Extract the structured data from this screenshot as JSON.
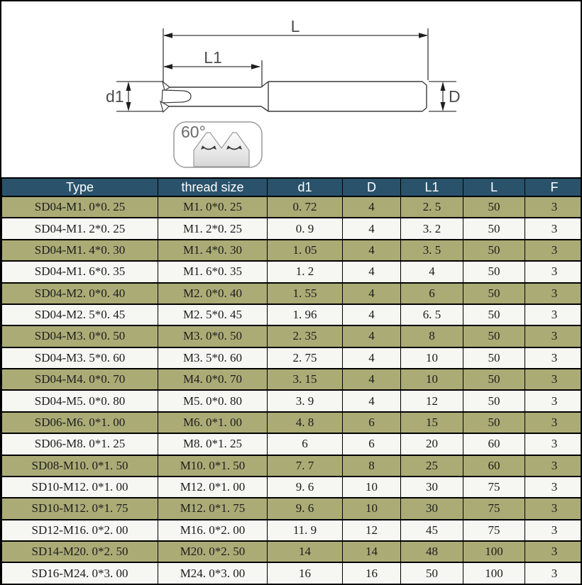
{
  "diagram": {
    "dim_L": "L",
    "dim_L1": "L1",
    "dim_d1": "d1",
    "dim_D": "D",
    "thread_angle": "60°"
  },
  "table": {
    "headers": [
      "Type",
      "thread size",
      "d1",
      "D",
      "L1",
      "L",
      "F"
    ],
    "rows": [
      [
        "SD04-M1. 0*0. 25",
        "M1. 0*0. 25",
        "0. 72",
        "4",
        "2. 5",
        "50",
        "3"
      ],
      [
        "SD04-M1. 2*0. 25",
        "M1. 2*0. 25",
        "0. 9",
        "4",
        "3. 2",
        "50",
        "3"
      ],
      [
        "SD04-M1. 4*0. 30",
        "M1. 4*0. 30",
        "1. 05",
        "4",
        "3. 5",
        "50",
        "3"
      ],
      [
        "SD04-M1. 6*0. 35",
        "M1. 6*0. 35",
        "1. 2",
        "4",
        "4",
        "50",
        "3"
      ],
      [
        "SD04-M2. 0*0. 40",
        "M2. 0*0. 40",
        "1. 55",
        "4",
        "6",
        "50",
        "3"
      ],
      [
        "SD04-M2. 5*0. 45",
        "M2. 5*0. 45",
        "1. 96",
        "4",
        "6. 5",
        "50",
        "3"
      ],
      [
        "SD04-M3. 0*0. 50",
        "M3. 0*0. 50",
        "2. 35",
        "4",
        "8",
        "50",
        "3"
      ],
      [
        "SD04-M3. 5*0. 60",
        "M3. 5*0. 60",
        "2. 75",
        "4",
        "10",
        "50",
        "3"
      ],
      [
        "SD04-M4. 0*0. 70",
        "M4. 0*0. 70",
        "3. 15",
        "4",
        "10",
        "50",
        "3"
      ],
      [
        "SD04-M5. 0*0. 80",
        "M5. 0*0. 80",
        "3. 9",
        "4",
        "12",
        "50",
        "3"
      ],
      [
        "SD06-M6. 0*1. 00",
        "M6. 0*1. 00",
        "4. 8",
        "6",
        "15",
        "50",
        "3"
      ],
      [
        "SD06-M8. 0*1. 25",
        "M8. 0*1. 25",
        "6",
        "6",
        "20",
        "60",
        "3"
      ],
      [
        "SD08-M10. 0*1. 50",
        "M10. 0*1. 50",
        "7. 7",
        "8",
        "25",
        "60",
        "3"
      ],
      [
        "SD10-M12. 0*1. 00",
        "M12. 0*1. 00",
        "9. 6",
        "10",
        "30",
        "75",
        "3"
      ],
      [
        "SD10-M12. 0*1. 75",
        "M12. 0*1. 75",
        "9. 6",
        "10",
        "30",
        "75",
        "3"
      ],
      [
        "SD12-M16. 0*2. 00",
        "M16. 0*2. 00",
        "11. 9",
        "12",
        "45",
        "75",
        "3"
      ],
      [
        "SD14-M20. 0*2. 50",
        "M20. 0*2. 50",
        "14",
        "14",
        "48",
        "100",
        "3"
      ],
      [
        "SD16-M24. 0*3. 00",
        "M24. 0*3. 00",
        "16",
        "16",
        "50",
        "100",
        "3"
      ]
    ],
    "colors": {
      "header_bg": "#2a536b",
      "row_olive": "#abab76",
      "row_plain": "#f6f6f3",
      "border": "#000000"
    }
  }
}
